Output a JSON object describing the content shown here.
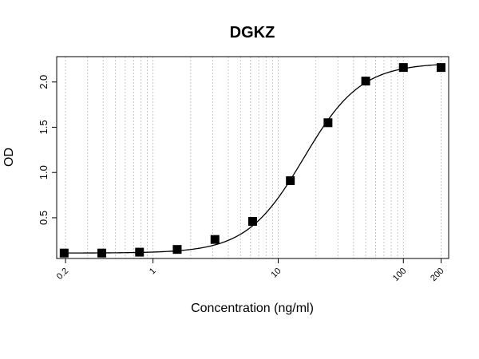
{
  "chart_data": {
    "type": "scatter",
    "title": "DGKZ",
    "xlabel": "Concentration (ng/ml)",
    "ylabel": "OD",
    "x_scale": "log",
    "xlim": [
      0.17,
      230
    ],
    "ylim": [
      0.05,
      2.28
    ],
    "x_ticks": [
      {
        "value": 0.2,
        "label": "0.2"
      },
      {
        "value": 1,
        "label": "1"
      },
      {
        "value": 10,
        "label": "10"
      },
      {
        "value": 100,
        "label": "100"
      },
      {
        "value": 200,
        "label": "200"
      }
    ],
    "y_ticks": [
      {
        "value": 0.5,
        "label": "0.5"
      },
      {
        "value": 1.0,
        "label": "1.0"
      },
      {
        "value": 1.5,
        "label": "1.5"
      },
      {
        "value": 2.0,
        "label": "2.0"
      }
    ],
    "grid": "vertical dotted at log minor ticks",
    "series": [
      {
        "marker": "filled-square",
        "x": [
          0.195,
          0.39,
          0.78,
          1.56,
          3.125,
          6.25,
          12.5,
          25,
          50,
          100,
          200
        ],
        "y": [
          0.11,
          0.11,
          0.12,
          0.15,
          0.26,
          0.46,
          0.91,
          1.55,
          2.01,
          2.16,
          2.16
        ]
      }
    ],
    "fit_curve": {
      "type": "4PL",
      "bottom": 0.11,
      "top": 2.21,
      "ec50": 16.0,
      "hill": 1.9
    }
  }
}
